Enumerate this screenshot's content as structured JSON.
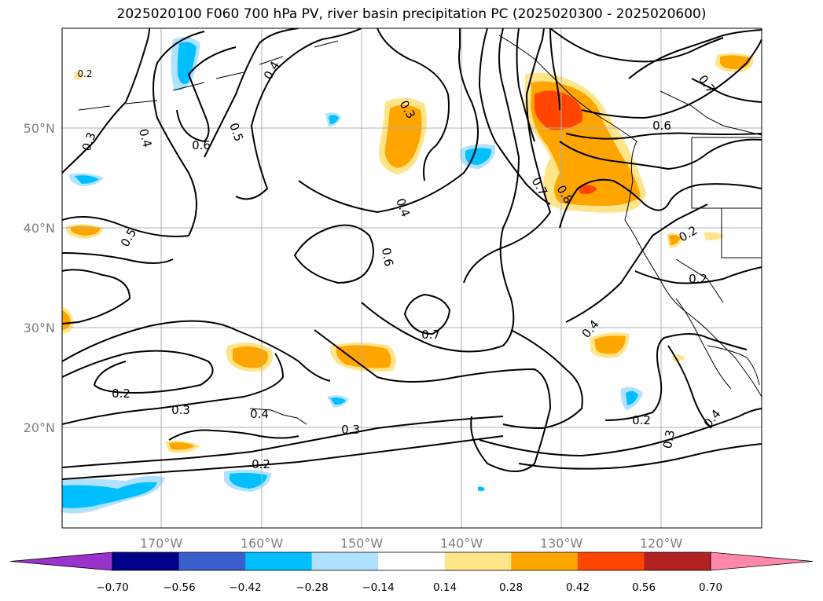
{
  "title": "2025020100 F060 700 hPa PV, river basin precipitation PC (2025020300 - 2025020600)",
  "lat_labels": [
    "50°N",
    "40°N",
    "30°N",
    "20°N"
  ],
  "lon_labels": [
    "170°W",
    "160°W",
    "150°W",
    "140°W",
    "130°W",
    "120°W"
  ],
  "colorbar": {
    "ticks": [
      "−0.70",
      "−0.56",
      "−0.42",
      "−0.28",
      "−0.14",
      "0.14",
      "0.28",
      "0.42",
      "0.56",
      "0.70"
    ],
    "colors": [
      "#9933cc",
      "#00008b",
      "#3a5fcd",
      "#00bfff",
      "#b0e2ff",
      "#ffffff",
      "#ffe58a",
      "#ffa500",
      "#ff4500",
      "#b22222",
      "#ff88aa"
    ]
  },
  "contour_labels": [
    "0.3",
    "0.4",
    "0.6",
    "0.5",
    "0.2",
    "0.4",
    "0.5",
    "0.3",
    "0.4",
    "0.6",
    "0.7",
    "0.8",
    "0.6",
    "0.7",
    "0.2",
    "0.2",
    "0.4",
    "0.7",
    "0.2",
    "0.3",
    "0.4",
    "0.3",
    "0.2",
    "0.2",
    "0.3",
    "0.4"
  ]
}
